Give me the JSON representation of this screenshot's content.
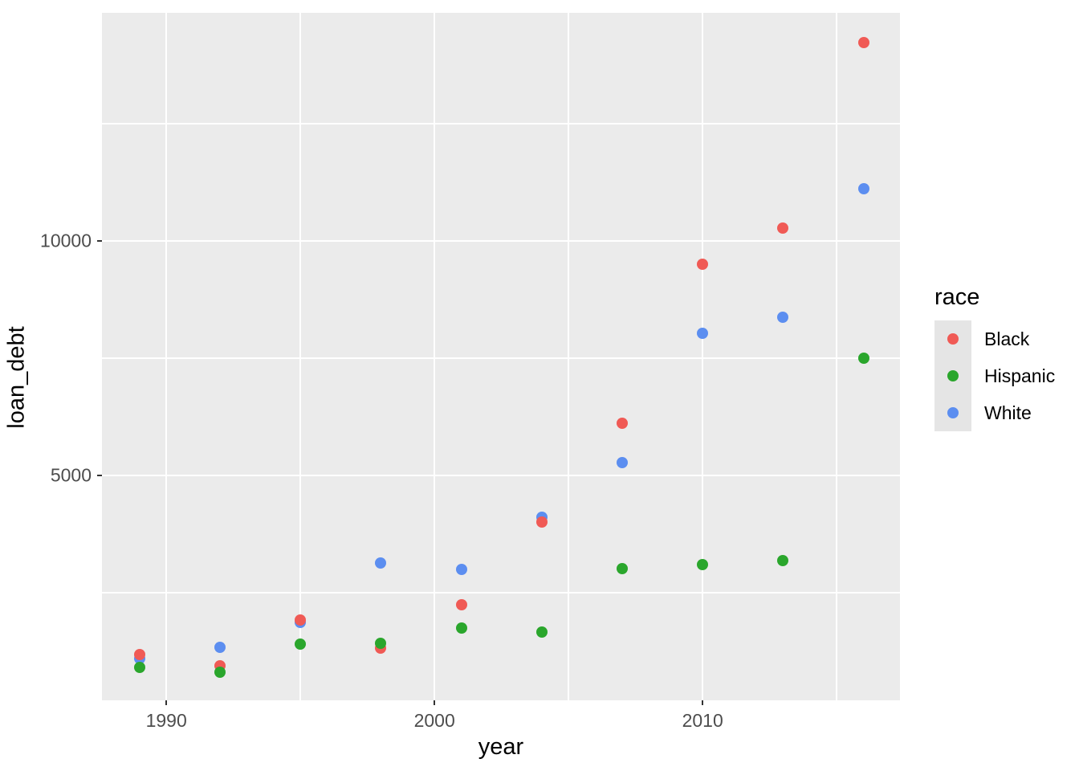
{
  "chart_data": {
    "type": "scatter",
    "title": "",
    "xlabel": "year",
    "ylabel": "loan_debt",
    "x": [
      1989,
      1992,
      1995,
      1998,
      2001,
      2004,
      2007,
      2010,
      2013,
      2016
    ],
    "series": [
      {
        "name": "Black",
        "color": "#F05A55",
        "z": 2,
        "values": [
          1180,
          940,
          1920,
          1320,
          2245,
          4005,
          6110,
          9500,
          10275,
          14230
        ]
      },
      {
        "name": "Hispanic",
        "color": "#2AA62C",
        "z": 3,
        "values": [
          910,
          805,
          1405,
          1420,
          1750,
          1660,
          3015,
          3100,
          3185,
          7500
        ]
      },
      {
        "name": "White",
        "color": "#5C8EF0",
        "z": 1,
        "values": [
          1100,
          1335,
          1870,
          3135,
          3000,
          4110,
          5275,
          8030,
          8375,
          11110
        ]
      }
    ],
    "x_ticks": [
      {
        "value": 1990,
        "label": "1990"
      },
      {
        "value": 2000,
        "label": "2000"
      },
      {
        "value": 2010,
        "label": "2010"
      }
    ],
    "y_ticks": [
      {
        "value": 5000,
        "label": "5000"
      },
      {
        "value": 10000,
        "label": "10000"
      }
    ],
    "x_minor": [
      1995,
      2005,
      2015
    ],
    "y_minor": [
      2500,
      7500,
      12500
    ],
    "x_range": [
      1987.6,
      2017.36
    ],
    "y_range": [
      205,
      14865
    ],
    "grid": "on",
    "legend_position": "right",
    "legend": {
      "title": "race",
      "entries": [
        "Black",
        "Hispanic",
        "White"
      ]
    },
    "colors": {
      "panel_bg": "#EBEBEB",
      "gridline": "#FFFFFF",
      "tick_mark": "#333333",
      "tick_label": "#4D4D4D",
      "axis_title": "#000000",
      "legend_key_bg": "#E5E5E5",
      "black_series": "#F05A55",
      "hispanic_series": "#2AA62C",
      "white_series": "#5C8EF0"
    }
  }
}
